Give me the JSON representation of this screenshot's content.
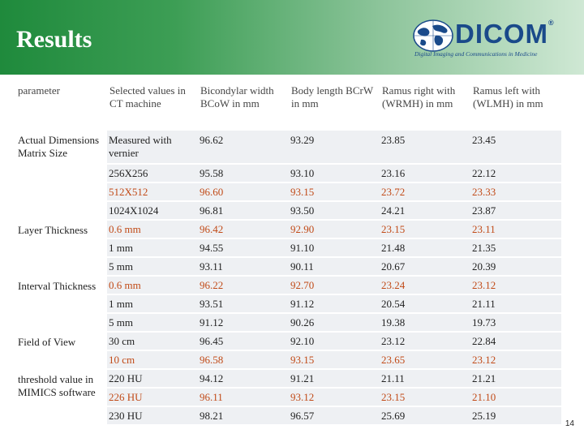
{
  "slide": {
    "title": "Results",
    "page_number": "14"
  },
  "logo": {
    "name": "DICOM",
    "trademark": "®",
    "tagline": "Digital Imaging and Communications in Medicine"
  },
  "colors": {
    "accent": "#c14a17",
    "header_green": "#1f8a3c",
    "row_bg": "#eef0f3",
    "logo_blue": "#1a4a8a"
  },
  "table": {
    "headers": [
      "parameter",
      "Selected values in CT machine",
      "Bicondylar width BCoW in mm",
      "Body length BCrW in mm",
      "Ramus right with (WRMH) in mm",
      "Ramus left with (WLMH) in mm"
    ],
    "groups": [
      {
        "category": "Actual Dimensions Matrix Size",
        "rows": [
          {
            "selected": "Measured with vernier",
            "bcow": "96.62",
            "bcrw": "93.29",
            "wrmh": "23.85",
            "wlmh": "23.45",
            "accent": false
          },
          {
            "selected": "256X256",
            "bcow": "95.58",
            "bcrw": "93.10",
            "wrmh": "23.16",
            "wlmh": "22.12",
            "accent": false
          },
          {
            "selected": "512X512",
            "bcow": "96.60",
            "bcrw": "93.15",
            "wrmh": "23.72",
            "wlmh": "23.33",
            "accent": true
          },
          {
            "selected": "1024X1024",
            "bcow": "96.81",
            "bcrw": "93.50",
            "wrmh": "24.21",
            "wlmh": "23.87",
            "accent": false
          }
        ]
      },
      {
        "category": "Layer Thickness",
        "rows": [
          {
            "selected": "0.6 mm",
            "bcow": "96.42",
            "bcrw": "92.90",
            "wrmh": "23.15",
            "wlmh": "23.11",
            "accent": true
          },
          {
            "selected": "1 mm",
            "bcow": "94.55",
            "bcrw": "91.10",
            "wrmh": "21.48",
            "wlmh": "21.35",
            "accent": false
          },
          {
            "selected": "5 mm",
            "bcow": "93.11",
            "bcrw": "90.11",
            "wrmh": "20.67",
            "wlmh": "20.39",
            "accent": false
          }
        ]
      },
      {
        "category": "Interval Thickness",
        "rows": [
          {
            "selected": "0.6 mm",
            "bcow": "96.22",
            "bcrw": "92.70",
            "wrmh": "23.24",
            "wlmh": "23.12",
            "accent": true
          },
          {
            "selected": "1 mm",
            "bcow": "93.51",
            "bcrw": "91.12",
            "wrmh": "20.54",
            "wlmh": "21.11",
            "accent": false
          },
          {
            "selected": "5 mm",
            "bcow": "91.12",
            "bcrw": "90.26",
            "wrmh": "19.38",
            "wlmh": "19.73",
            "accent": false
          }
        ]
      },
      {
        "category": "Field of View",
        "rows": [
          {
            "selected": "30 cm",
            "bcow": "96.45",
            "bcrw": "92.10",
            "wrmh": "23.12",
            "wlmh": "22.84",
            "accent": false
          },
          {
            "selected": "10 cm",
            "bcow": "96.58",
            "bcrw": "93.15",
            "wrmh": "23.65",
            "wlmh": "23.12",
            "accent": true
          }
        ]
      },
      {
        "category": "threshold value in MIMICS software",
        "rows": [
          {
            "selected": "220 HU",
            "bcow": "94.12",
            "bcrw": "91.21",
            "wrmh": "21.11",
            "wlmh": "21.21",
            "accent": false
          },
          {
            "selected": "226 HU",
            "bcow": "96.11",
            "bcrw": "93.12",
            "wrmh": "23.15",
            "wlmh": "21.10",
            "accent": true
          },
          {
            "selected": "230 HU",
            "bcow": "98.21",
            "bcrw": "96.57",
            "wrmh": "25.69",
            "wlmh": "25.19",
            "accent": false
          }
        ]
      }
    ]
  }
}
